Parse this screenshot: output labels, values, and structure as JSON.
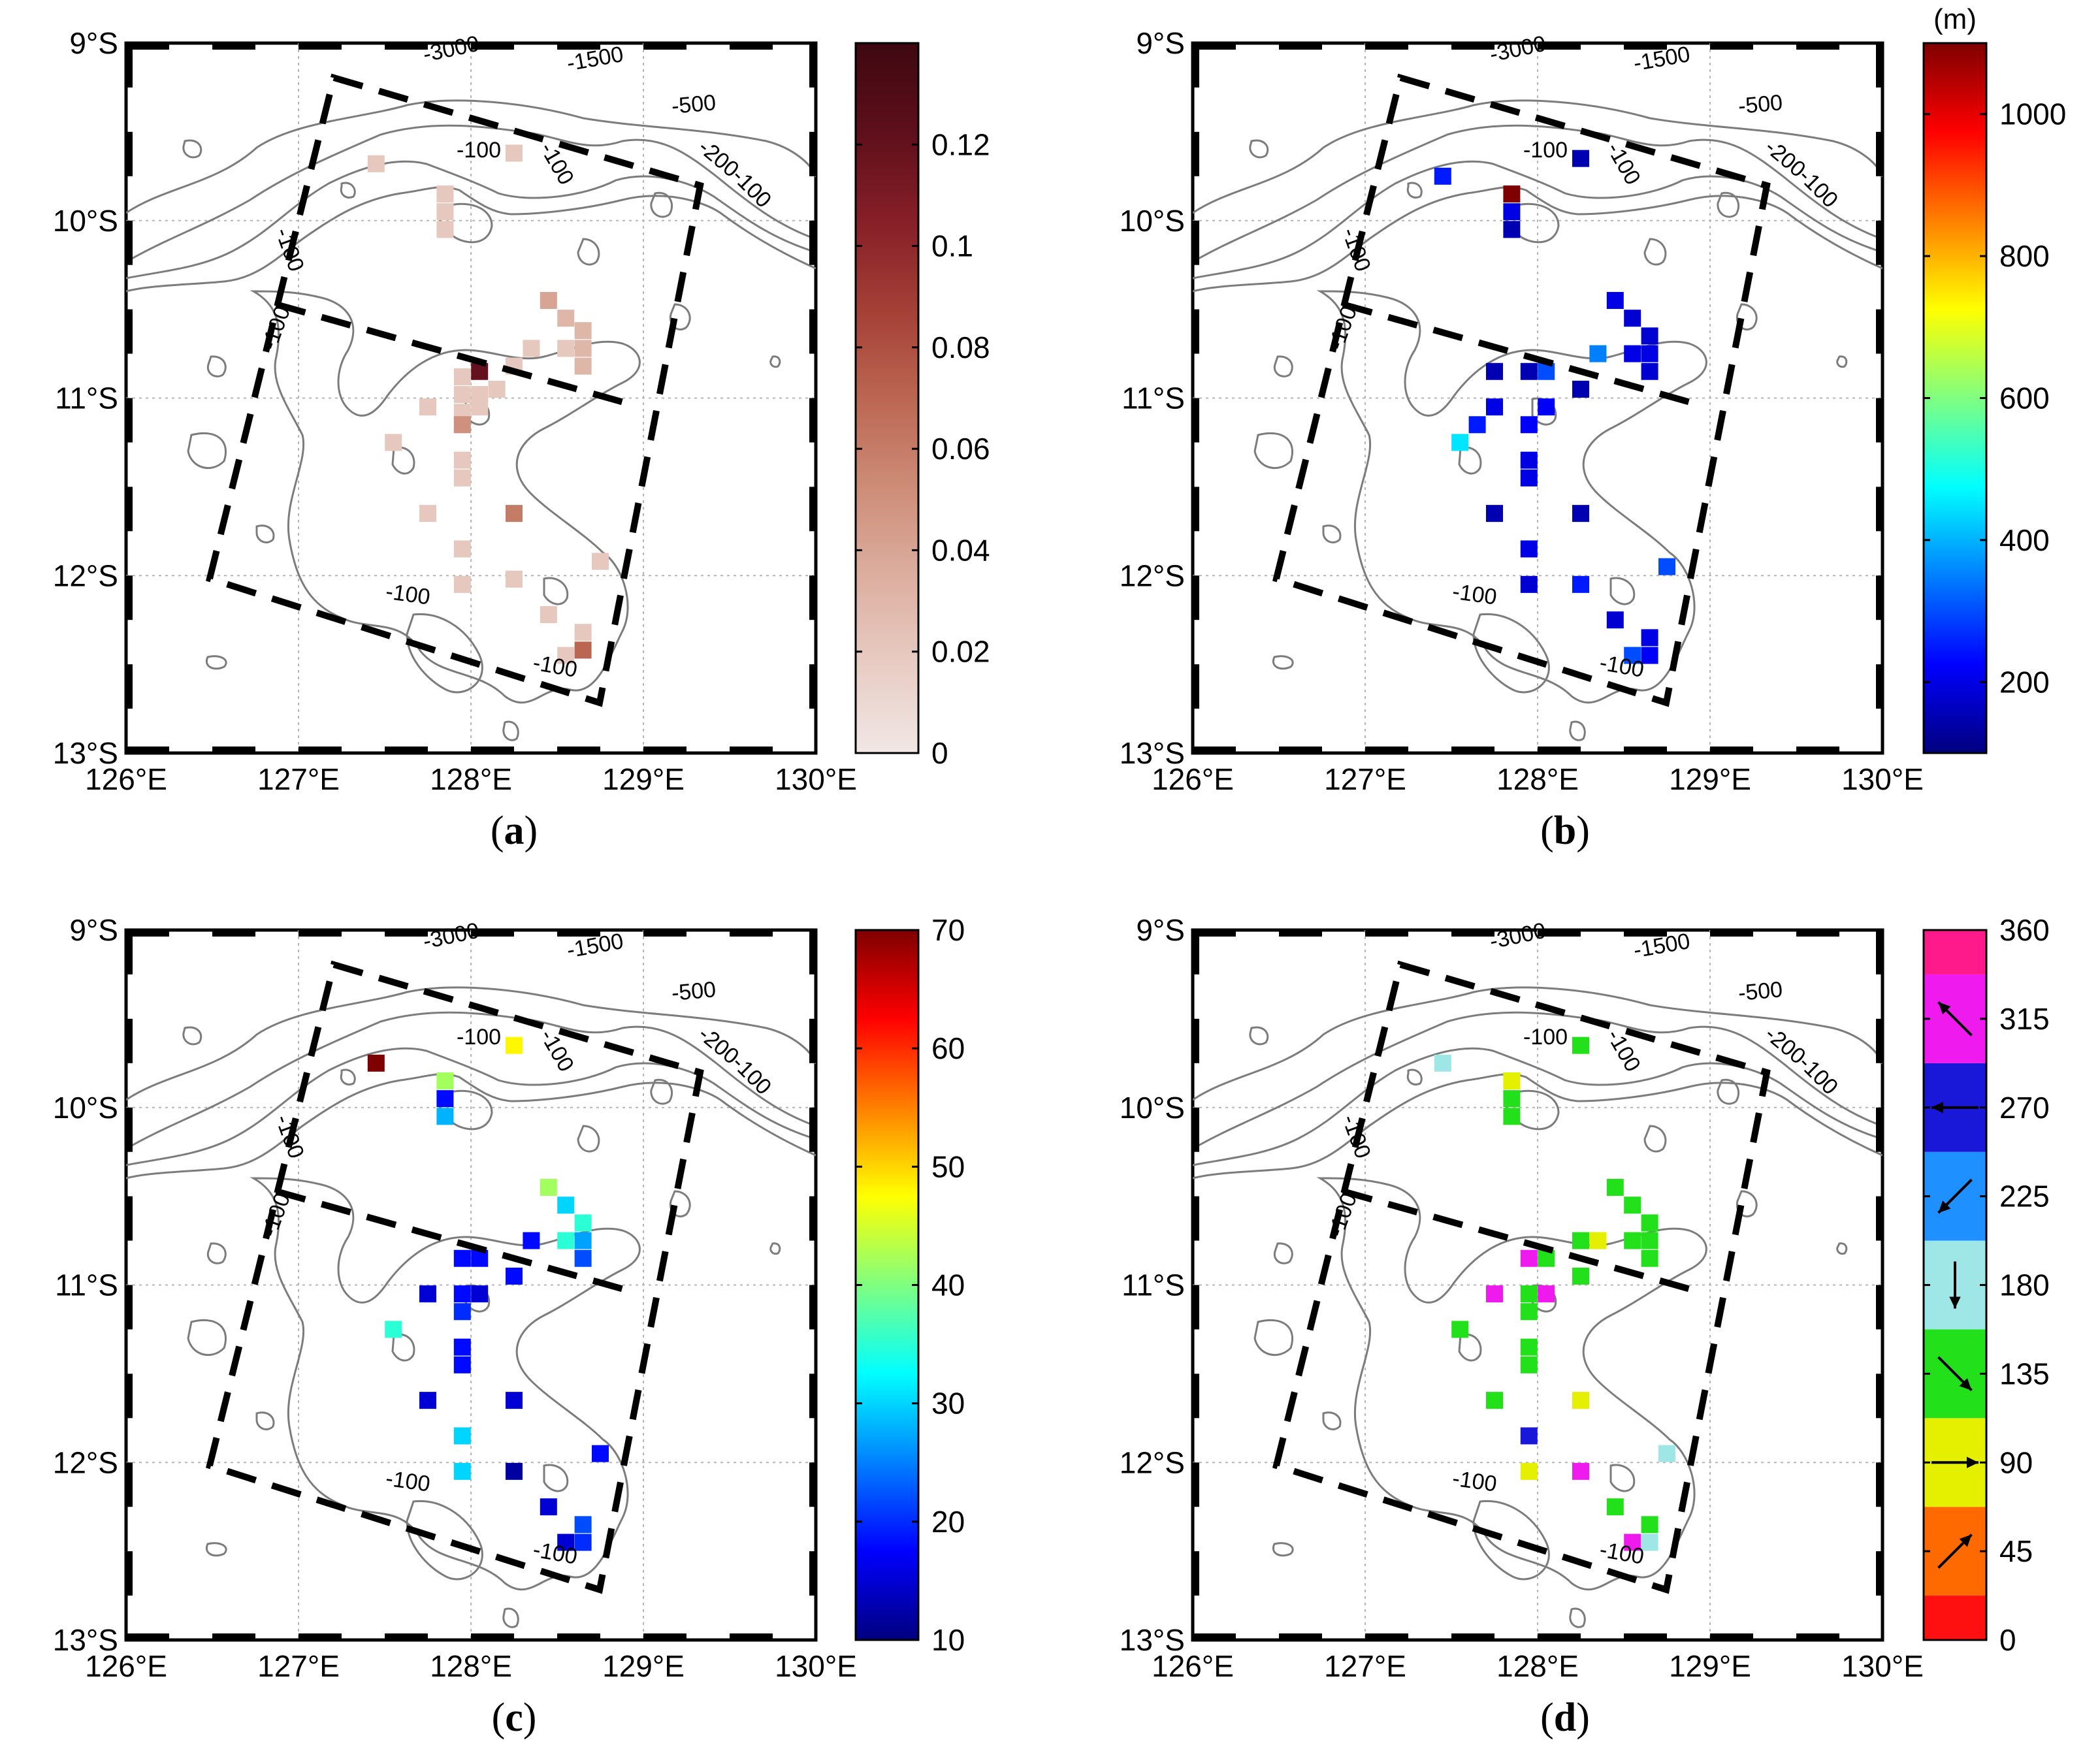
{
  "map": {
    "x_ticks": [
      "126°E",
      "127°E",
      "128°E",
      "129°E",
      "130°E"
    ],
    "y_ticks": [
      "9°S",
      "10°S",
      "11°S",
      "12°S",
      "13°S"
    ],
    "contour_labels": [
      "-3000",
      "-1500",
      "-500",
      "-200",
      "-100",
      "-100",
      "-100",
      "-100",
      "-100",
      "-100",
      "-100"
    ]
  },
  "panels": [
    {
      "id": "a",
      "label_prefix": "(",
      "label_letter": "a",
      "label_suffix": ")",
      "colorbar": {
        "unit": "",
        "min": 0,
        "max": 0.14,
        "ticks": [
          "0",
          "0.02",
          "0.04",
          "0.06",
          "0.08",
          "0.1",
          "0.12"
        ],
        "tick_values": [
          0,
          0.02,
          0.04,
          0.06,
          0.08,
          0.1,
          0.12
        ],
        "palette": [
          "#f1e7e5",
          "#e8ccc3",
          "#dcae9f",
          "#cd8c77",
          "#bb6652",
          "#a43f36",
          "#861f27",
          "#5e0f1b",
          "#3e0810"
        ]
      },
      "cells": [
        [
          127.45,
          9.68,
          0.02
        ],
        [
          128.25,
          9.62,
          0.02
        ],
        [
          127.85,
          9.85,
          0.02
        ],
        [
          127.85,
          9.95,
          0.02
        ],
        [
          127.85,
          10.05,
          0.02
        ],
        [
          128.45,
          10.45,
          0.04
        ],
        [
          128.55,
          10.55,
          0.03
        ],
        [
          128.65,
          10.62,
          0.03
        ],
        [
          128.65,
          10.72,
          0.03
        ],
        [
          128.55,
          10.72,
          0.02
        ],
        [
          128.65,
          10.82,
          0.03
        ],
        [
          128.35,
          10.72,
          0.02
        ],
        [
          128.25,
          10.82,
          0.02
        ],
        [
          128.05,
          10.85,
          0.12
        ],
        [
          127.95,
          10.88,
          0.02
        ],
        [
          127.95,
          10.98,
          0.02
        ],
        [
          128.05,
          10.98,
          0.02
        ],
        [
          128.15,
          10.95,
          0.02
        ],
        [
          127.75,
          11.05,
          0.02
        ],
        [
          127.95,
          11.08,
          0.02
        ],
        [
          128.05,
          11.05,
          0.02
        ],
        [
          127.95,
          11.15,
          0.05
        ],
        [
          127.55,
          11.25,
          0.02
        ],
        [
          127.95,
          11.35,
          0.02
        ],
        [
          127.95,
          11.45,
          0.02
        ],
        [
          127.75,
          11.65,
          0.02
        ],
        [
          128.25,
          11.65,
          0.06
        ],
        [
          127.95,
          11.85,
          0.02
        ],
        [
          128.75,
          11.92,
          0.02
        ],
        [
          127.95,
          12.05,
          0.02
        ],
        [
          128.25,
          12.02,
          0.02
        ],
        [
          128.45,
          12.22,
          0.02
        ],
        [
          128.65,
          12.32,
          0.02
        ],
        [
          128.65,
          12.42,
          0.07
        ],
        [
          128.55,
          12.45,
          0.02
        ]
      ]
    },
    {
      "id": "b",
      "label_prefix": "(",
      "label_letter": "b",
      "label_suffix": ")",
      "colorbar": {
        "unit": "(m)",
        "min": 100,
        "max": 1100,
        "ticks": [
          "200",
          "400",
          "600",
          "800",
          "1000"
        ],
        "tick_values": [
          200,
          400,
          600,
          800,
          1000
        ],
        "palette": [
          "#00007f",
          "#0000ff",
          "#0080ff",
          "#00ffff",
          "#80ff80",
          "#ffff00",
          "#ff8000",
          "#ff0000",
          "#7f0000"
        ]
      },
      "cells": [
        [
          127.45,
          9.75,
          250
        ],
        [
          128.25,
          9.65,
          150
        ],
        [
          127.85,
          9.85,
          1100
        ],
        [
          127.85,
          9.95,
          200
        ],
        [
          127.85,
          10.05,
          150
        ],
        [
          128.45,
          10.45,
          200
        ],
        [
          128.55,
          10.55,
          180
        ],
        [
          128.65,
          10.65,
          180
        ],
        [
          128.35,
          10.75,
          350
        ],
        [
          128.55,
          10.75,
          200
        ],
        [
          128.65,
          10.75,
          200
        ],
        [
          128.65,
          10.85,
          180
        ],
        [
          127.75,
          10.85,
          150
        ],
        [
          127.95,
          10.85,
          150
        ],
        [
          128.05,
          10.85,
          300
        ],
        [
          128.25,
          10.95,
          150
        ],
        [
          127.75,
          11.05,
          200
        ],
        [
          128.05,
          11.05,
          220
        ],
        [
          127.65,
          11.15,
          250
        ],
        [
          127.95,
          11.15,
          220
        ],
        [
          127.55,
          11.25,
          450
        ],
        [
          127.95,
          11.35,
          200
        ],
        [
          127.95,
          11.45,
          200
        ],
        [
          127.75,
          11.65,
          150
        ],
        [
          128.25,
          11.65,
          150
        ],
        [
          127.95,
          11.85,
          200
        ],
        [
          128.75,
          11.95,
          300
        ],
        [
          127.95,
          12.05,
          180
        ],
        [
          128.25,
          12.05,
          250
        ],
        [
          128.45,
          12.25,
          180
        ],
        [
          128.65,
          12.35,
          200
        ],
        [
          128.65,
          12.45,
          220
        ],
        [
          128.55,
          12.45,
          300
        ]
      ]
    },
    {
      "id": "c",
      "label_prefix": "(",
      "label_letter": "c",
      "label_suffix": ")",
      "colorbar": {
        "unit": "",
        "min": 10,
        "max": 70,
        "ticks": [
          "10",
          "20",
          "30",
          "40",
          "50",
          "60",
          "70"
        ],
        "tick_values": [
          10,
          20,
          30,
          40,
          50,
          60,
          70
        ],
        "palette": [
          "#00007f",
          "#0000ff",
          "#0080ff",
          "#00ffff",
          "#80ff80",
          "#ffff00",
          "#ff8000",
          "#ff0000",
          "#7f0000"
        ]
      },
      "cells": [
        [
          127.45,
          9.75,
          70
        ],
        [
          128.25,
          9.65,
          48
        ],
        [
          127.85,
          9.85,
          42
        ],
        [
          127.85,
          9.95,
          18
        ],
        [
          127.85,
          10.05,
          28
        ],
        [
          128.45,
          10.45,
          42
        ],
        [
          128.55,
          10.55,
          30
        ],
        [
          128.65,
          10.65,
          35
        ],
        [
          128.65,
          10.75,
          27
        ],
        [
          128.55,
          10.75,
          35
        ],
        [
          128.65,
          10.85,
          22
        ],
        [
          128.35,
          10.75,
          18
        ],
        [
          127.95,
          10.85,
          18
        ],
        [
          128.05,
          10.85,
          18
        ],
        [
          128.25,
          10.95,
          18
        ],
        [
          127.75,
          11.05,
          15
        ],
        [
          127.95,
          11.05,
          18
        ],
        [
          128.05,
          11.05,
          15
        ],
        [
          127.95,
          11.15,
          20
        ],
        [
          127.55,
          11.25,
          35
        ],
        [
          127.95,
          11.35,
          18
        ],
        [
          127.95,
          11.45,
          18
        ],
        [
          127.75,
          11.65,
          15
        ],
        [
          128.25,
          11.65,
          15
        ],
        [
          127.95,
          11.85,
          30
        ],
        [
          128.75,
          11.95,
          18
        ],
        [
          127.95,
          12.05,
          30
        ],
        [
          128.25,
          12.05,
          12
        ],
        [
          128.45,
          12.25,
          15
        ],
        [
          128.65,
          12.35,
          22
        ],
        [
          128.65,
          12.45,
          20
        ],
        [
          128.55,
          12.45,
          15
        ]
      ]
    },
    {
      "id": "d",
      "label_prefix": "(",
      "label_letter": "d",
      "label_suffix": ")",
      "colorbar": {
        "unit": "",
        "min": 0,
        "max": 360,
        "ticks": [
          "0",
          "45",
          "90",
          "135",
          "180",
          "225",
          "270",
          "315",
          "360"
        ],
        "tick_values": [
          0,
          45,
          90,
          135,
          180,
          225,
          270,
          315,
          360
        ],
        "bins": [
          {
            "from": 0,
            "to": 22.5,
            "color": "#ff1010"
          },
          {
            "from": 22.5,
            "to": 67.5,
            "color": "#ff6a00"
          },
          {
            "from": 67.5,
            "to": 112.5,
            "color": "#e4f000"
          },
          {
            "from": 112.5,
            "to": 157.5,
            "color": "#22e11a"
          },
          {
            "from": 157.5,
            "to": 202.5,
            "color": "#9fe6e6"
          },
          {
            "from": 202.5,
            "to": 247.5,
            "color": "#1e90ff"
          },
          {
            "from": 247.5,
            "to": 292.5,
            "color": "#1a18d8"
          },
          {
            "from": 292.5,
            "to": 337.5,
            "color": "#ee1aee"
          },
          {
            "from": 337.5,
            "to": 360,
            "color": "#ff1a8c"
          }
        ],
        "arrow_directions": [
          45,
          90,
          135,
          180,
          225,
          270,
          315
        ]
      },
      "cells": [
        [
          127.45,
          9.75,
          180
        ],
        [
          128.25,
          9.65,
          135
        ],
        [
          127.85,
          9.85,
          90
        ],
        [
          127.85,
          9.95,
          135
        ],
        [
          127.85,
          10.05,
          135
        ],
        [
          128.45,
          10.45,
          135
        ],
        [
          128.55,
          10.55,
          135
        ],
        [
          128.65,
          10.65,
          135
        ],
        [
          128.65,
          10.75,
          135
        ],
        [
          128.55,
          10.75,
          135
        ],
        [
          128.65,
          10.85,
          135
        ],
        [
          128.35,
          10.75,
          90
        ],
        [
          128.25,
          10.75,
          135
        ],
        [
          127.95,
          10.85,
          315
        ],
        [
          128.05,
          10.85,
          135
        ],
        [
          128.25,
          10.95,
          135
        ],
        [
          127.75,
          11.05,
          315
        ],
        [
          127.95,
          11.05,
          135
        ],
        [
          128.05,
          11.05,
          315
        ],
        [
          127.95,
          11.15,
          135
        ],
        [
          127.55,
          11.25,
          135
        ],
        [
          127.95,
          11.35,
          135
        ],
        [
          127.95,
          11.45,
          135
        ],
        [
          127.75,
          11.65,
          135
        ],
        [
          128.25,
          11.65,
          90
        ],
        [
          127.95,
          11.85,
          270
        ],
        [
          128.75,
          11.95,
          180
        ],
        [
          127.95,
          12.05,
          90
        ],
        [
          128.25,
          12.05,
          315
        ],
        [
          128.45,
          12.25,
          135
        ],
        [
          128.65,
          12.35,
          135
        ],
        [
          128.55,
          12.45,
          315
        ],
        [
          128.65,
          12.45,
          180
        ]
      ]
    }
  ]
}
